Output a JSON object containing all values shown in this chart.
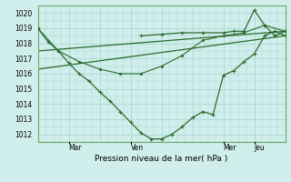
{
  "bg_color": "#d0eeeb",
  "grid_color": "#aad8d4",
  "line_color": "#2d6b2d",
  "dark_line_color": "#1a5c1a",
  "x_tick_labels": [
    "Mar",
    "Ven",
    "Mer",
    "Jeu"
  ],
  "series1_x": [
    0,
    4,
    8,
    12,
    16,
    20,
    24,
    28,
    32,
    36,
    40,
    44,
    48,
    52,
    56,
    60,
    64,
    68,
    72,
    76,
    80,
    84,
    88,
    92,
    96
  ],
  "series1_y": [
    1019.0,
    1018.1,
    1017.5,
    1016.7,
    1016.0,
    1015.5,
    1014.8,
    1014.2,
    1013.5,
    1012.8,
    1012.1,
    1011.7,
    1011.7,
    1012.0,
    1012.5,
    1013.1,
    1013.5,
    1013.3,
    1015.9,
    1016.2,
    1016.8,
    1017.3,
    1018.5,
    1018.8,
    1018.5
  ],
  "series2_x": [
    0,
    8,
    16,
    24,
    32,
    40,
    48,
    56,
    64,
    72,
    80,
    88,
    96
  ],
  "series2_y": [
    1019.0,
    1017.5,
    1016.8,
    1016.3,
    1016.0,
    1016.0,
    1016.5,
    1017.2,
    1018.2,
    1018.5,
    1018.7,
    1019.2,
    1018.8
  ],
  "series3_x": [
    0,
    96
  ],
  "series3_y": [
    1017.5,
    1018.8
  ],
  "series4_x": [
    0,
    96
  ],
  "series4_y": [
    1016.3,
    1018.5
  ],
  "series5_x": [
    40,
    48,
    56,
    64,
    72,
    76,
    80,
    84,
    88,
    92,
    96
  ],
  "series5_y": [
    1018.5,
    1018.6,
    1018.7,
    1018.7,
    1018.7,
    1018.8,
    1018.8,
    1020.2,
    1019.2,
    1018.5,
    1018.8
  ],
  "xlabel_text": "Pression niveau de la mer( hPa )",
  "ylim": [
    1011.5,
    1020.5
  ],
  "yticks": [
    1012,
    1013,
    1014,
    1015,
    1016,
    1017,
    1018,
    1019,
    1020
  ],
  "xlim": [
    0,
    96
  ],
  "x_tick_line_pos": [
    12,
    36,
    72,
    84
  ],
  "spine_color": "#6aaa6a"
}
